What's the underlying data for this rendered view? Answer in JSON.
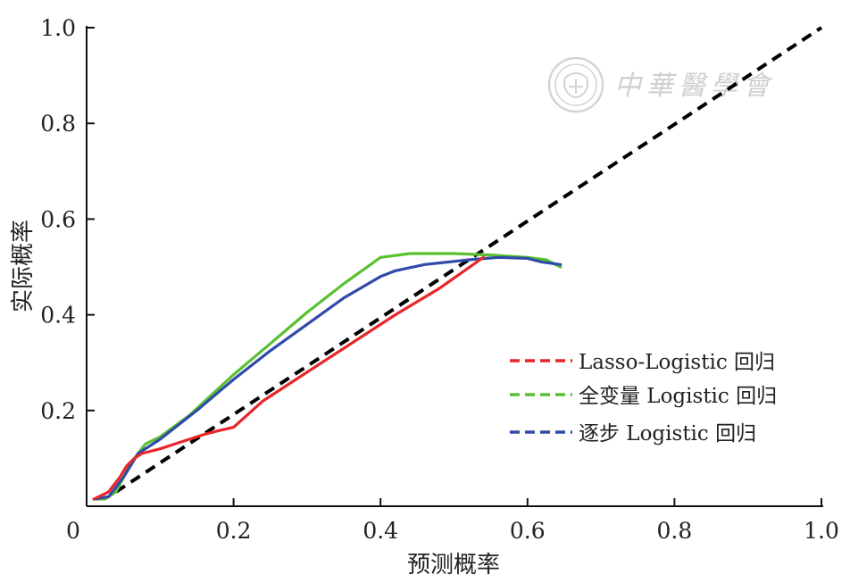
{
  "watermark": {
    "text": "中華醫學會",
    "color": "#cfcfcf"
  },
  "chart_data": {
    "type": "line",
    "title": "",
    "xlabel": "预测概率",
    "ylabel": "实际概率",
    "xlim": [
      0,
      1.0
    ],
    "ylim": [
      0,
      1.0
    ],
    "x_ticks": [
      0,
      0.2,
      0.4,
      0.6,
      0.8,
      1.0
    ],
    "x_tick_labels": [
      "0",
      "0.2",
      "0.4",
      "0.6",
      "0.8",
      "1.0"
    ],
    "y_ticks": [
      0.2,
      0.4,
      0.6,
      0.8,
      1.0
    ],
    "y_tick_labels": [
      "0.2",
      "0.4",
      "0.6",
      "0.8",
      "1.0"
    ],
    "grid": false,
    "legend_position": "right",
    "reference_line": {
      "x": [
        0.04,
        1.0
      ],
      "y": [
        0.03,
        1.0
      ],
      "color": "#000000",
      "style": "dashed"
    },
    "series": [
      {
        "name": "Lasso-Logistic 回归",
        "color": "#e8262a",
        "x": [
          0.01,
          0.03,
          0.045,
          0.055,
          0.065,
          0.075,
          0.1,
          0.13,
          0.16,
          0.18,
          0.2,
          0.24,
          0.3,
          0.36,
          0.42,
          0.48,
          0.54
        ],
        "y": [
          0.015,
          0.03,
          0.06,
          0.085,
          0.1,
          0.11,
          0.12,
          0.135,
          0.15,
          0.158,
          0.165,
          0.22,
          0.28,
          0.34,
          0.4,
          0.455,
          0.52
        ]
      },
      {
        "name": "全变量 Logistic 回归",
        "color": "#5ac032",
        "x": [
          0.01,
          0.025,
          0.04,
          0.06,
          0.08,
          0.1,
          0.14,
          0.2,
          0.25,
          0.3,
          0.35,
          0.4,
          0.44,
          0.5,
          0.55,
          0.6,
          0.625,
          0.645
        ],
        "y": [
          0.015,
          0.015,
          0.03,
          0.09,
          0.13,
          0.145,
          0.19,
          0.275,
          0.34,
          0.405,
          0.465,
          0.52,
          0.528,
          0.528,
          0.525,
          0.52,
          0.515,
          0.5
        ]
      },
      {
        "name": "逐步 Logistic 回归",
        "color": "#2f4aa8",
        "x": [
          0.01,
          0.03,
          0.05,
          0.07,
          0.1,
          0.15,
          0.2,
          0.25,
          0.3,
          0.35,
          0.4,
          0.42,
          0.46,
          0.52,
          0.56,
          0.6,
          0.62,
          0.645
        ],
        "y": [
          0.015,
          0.02,
          0.06,
          0.11,
          0.14,
          0.2,
          0.265,
          0.325,
          0.38,
          0.435,
          0.48,
          0.492,
          0.505,
          0.515,
          0.52,
          0.518,
          0.51,
          0.505
        ]
      }
    ]
  }
}
